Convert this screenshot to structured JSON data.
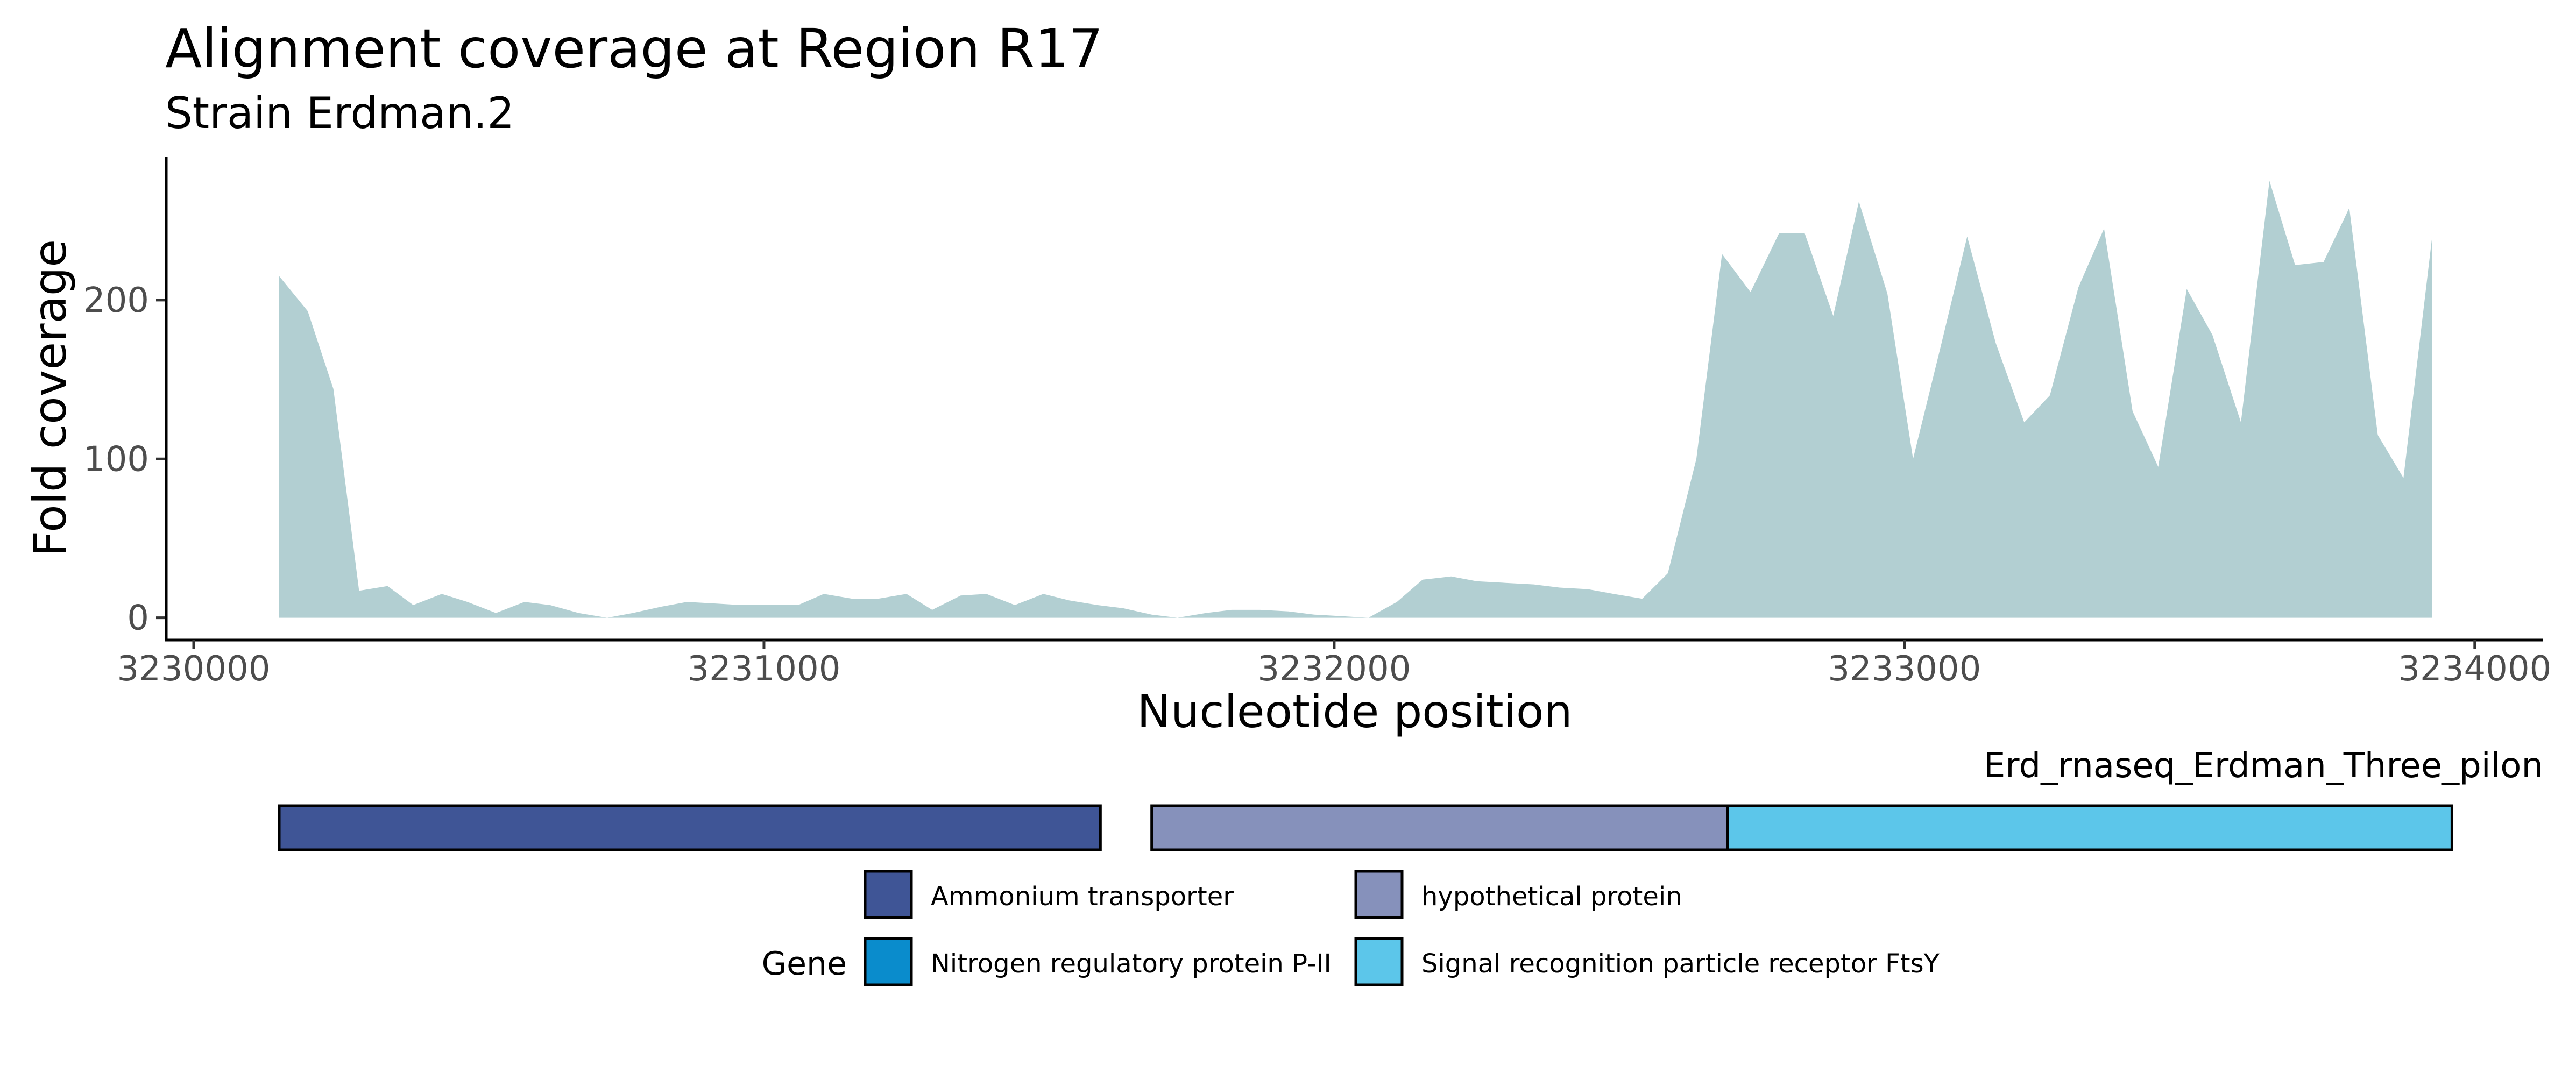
{
  "chart_data": {
    "type": "area",
    "title": "Alignment coverage at Region R17",
    "subtitle": "Strain Erdman.2",
    "xlabel": "Nucleotide position",
    "ylabel": "Fold coverage",
    "xlim": [
      3229950,
      3234120
    ],
    "ylim": [
      -14,
      290
    ],
    "x_ticks": [
      3230000,
      3231000,
      3232000,
      3233000,
      3234000
    ],
    "x_tick_labels": [
      "3230000",
      "3231000",
      "3232000",
      "3233000",
      "3234000"
    ],
    "y_ticks": [
      0,
      100,
      200
    ],
    "y_tick_labels": [
      "0",
      "100",
      "200"
    ],
    "grid": false,
    "fill_color": "#b2cfd2",
    "series": [
      {
        "x": [
          3230150,
          3230200,
          3230245,
          3230290,
          3230340,
          3230385,
          3230435,
          3230480,
          3230530,
          3230580,
          3230625,
          3230675,
          3230725,
          3230770,
          3230820,
          3230865,
          3230915,
          3230960,
          3231010,
          3231060,
          3231105,
          3231155,
          3231200,
          3231250,
          3231295,
          3231345,
          3231390,
          3231440,
          3231490,
          3231535,
          3231585,
          3231630,
          3231680,
          3231725,
          3231775,
          3231820,
          3231870,
          3231920,
          3231965,
          3232015,
          3232060,
          3232110,
          3232155,
          3232205,
          3232250,
          3232300,
          3232350,
          3232395,
          3232445,
          3232490,
          3232540,
          3232585,
          3232635,
          3232680,
          3232730,
          3232780,
          3232825,
          3232875,
          3232920,
          3232970,
          3233015,
          3233065,
          3233110,
          3233160,
          3233210,
          3233255,
          3233305,
          3233350,
          3233400,
          3233445,
          3233495,
          3233540,
          3233590,
          3233640,
          3233685,
          3233735,
          3233780,
          3233830,
          3233875,
          3233925
        ],
        "values": [
          215,
          193,
          144,
          17,
          20,
          8,
          15,
          10,
          3,
          10,
          8,
          3,
          0,
          3,
          7,
          10,
          9,
          8,
          8,
          8,
          15,
          12,
          12,
          15,
          5,
          14,
          15,
          8,
          15,
          11,
          8,
          6,
          2,
          0,
          3,
          5,
          5,
          4,
          2,
          1,
          0,
          10,
          24,
          26,
          23,
          22,
          21,
          19,
          18,
          15,
          12,
          28,
          100,
          229,
          205,
          242,
          242,
          190,
          262,
          204,
          100,
          173,
          240,
          173,
          123,
          140,
          208,
          245,
          130,
          95,
          207,
          178,
          123,
          275,
          222,
          224,
          258,
          115,
          88,
          239
        ]
      }
    ],
    "genes_track": {
      "label": "Erd_rnaseq_Erdman_Three_pilon",
      "segments": [
        {
          "gene": "Ammonium transporter",
          "start": 3230150,
          "end": 3231590
        },
        {
          "gene": "hypothetical protein",
          "start": 3231680,
          "end": 3232690
        },
        {
          "gene": "Signal recognition particle receptor FtsY",
          "start": 3232690,
          "end": 3233960
        }
      ]
    },
    "legend": {
      "title": "Gene",
      "placement": "bottom",
      "entries": [
        {
          "label": "Ammonium transporter",
          "color": "#3f5596"
        },
        {
          "label": "hypothetical protein",
          "color": "#8691bb"
        },
        {
          "label": "Nitrogen regulatory protein P-II",
          "color": "#0a8ccc"
        },
        {
          "label": "Signal recognition particle receptor FtsY",
          "color": "#5cc6ea"
        }
      ]
    }
  }
}
